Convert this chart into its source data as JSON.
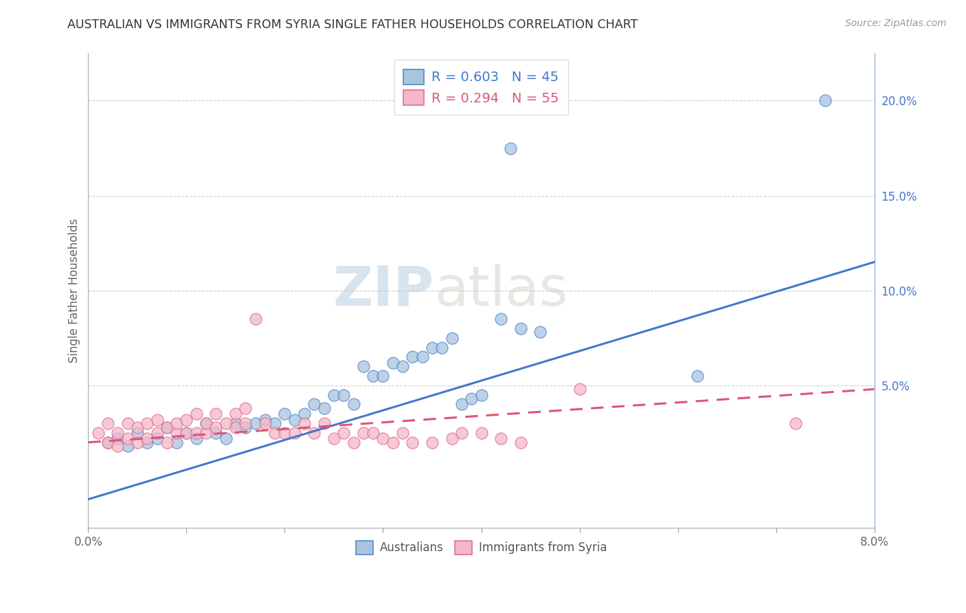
{
  "title": "AUSTRALIAN VS IMMIGRANTS FROM SYRIA SINGLE FATHER HOUSEHOLDS CORRELATION CHART",
  "source": "Source: ZipAtlas.com",
  "ylabel": "Single Father Households",
  "right_yticks": [
    0.0,
    0.05,
    0.1,
    0.15,
    0.2
  ],
  "right_yticklabels": [
    "",
    "5.0%",
    "10.0%",
    "15.0%",
    "20.0%"
  ],
  "blue_R": "0.603",
  "blue_N": "45",
  "pink_R": "0.294",
  "pink_N": "55",
  "blue_color": "#a8c4e0",
  "pink_color": "#f4b8c8",
  "blue_edge_color": "#5588cc",
  "pink_edge_color": "#e07090",
  "blue_line_color": "#4477cc",
  "pink_line_color": "#dd5577",
  "legend_label1": "Australians",
  "legend_label2": "Immigrants from Syria",
  "blue_x": [
    0.002,
    0.003,
    0.004,
    0.005,
    0.006,
    0.007,
    0.008,
    0.009,
    0.01,
    0.011,
    0.012,
    0.013,
    0.014,
    0.015,
    0.016,
    0.017,
    0.018,
    0.019,
    0.02,
    0.021,
    0.022,
    0.023,
    0.024,
    0.025,
    0.026,
    0.027,
    0.028,
    0.029,
    0.03,
    0.031,
    0.032,
    0.033,
    0.034,
    0.035,
    0.036,
    0.037,
    0.038,
    0.039,
    0.04,
    0.042,
    0.043,
    0.044,
    0.046,
    0.075,
    0.062
  ],
  "blue_y": [
    0.02,
    0.022,
    0.018,
    0.025,
    0.02,
    0.022,
    0.028,
    0.02,
    0.025,
    0.022,
    0.03,
    0.025,
    0.022,
    0.03,
    0.028,
    0.03,
    0.032,
    0.03,
    0.035,
    0.032,
    0.035,
    0.04,
    0.038,
    0.045,
    0.045,
    0.04,
    0.06,
    0.055,
    0.055,
    0.062,
    0.06,
    0.065,
    0.065,
    0.07,
    0.07,
    0.075,
    0.04,
    0.043,
    0.045,
    0.085,
    0.175,
    0.08,
    0.078,
    0.2,
    0.055
  ],
  "pink_x": [
    0.001,
    0.002,
    0.002,
    0.003,
    0.003,
    0.004,
    0.004,
    0.005,
    0.005,
    0.006,
    0.006,
    0.007,
    0.007,
    0.008,
    0.008,
    0.009,
    0.009,
    0.01,
    0.01,
    0.011,
    0.011,
    0.012,
    0.012,
    0.013,
    0.013,
    0.014,
    0.015,
    0.015,
    0.016,
    0.016,
    0.017,
    0.018,
    0.019,
    0.02,
    0.021,
    0.022,
    0.023,
    0.024,
    0.025,
    0.026,
    0.027,
    0.028,
    0.029,
    0.03,
    0.031,
    0.032,
    0.033,
    0.035,
    0.037,
    0.038,
    0.04,
    0.042,
    0.044,
    0.05,
    0.072
  ],
  "pink_y": [
    0.025,
    0.02,
    0.03,
    0.018,
    0.025,
    0.022,
    0.03,
    0.02,
    0.028,
    0.022,
    0.03,
    0.025,
    0.032,
    0.02,
    0.028,
    0.025,
    0.03,
    0.025,
    0.032,
    0.025,
    0.035,
    0.025,
    0.03,
    0.028,
    0.035,
    0.03,
    0.028,
    0.035,
    0.03,
    0.038,
    0.085,
    0.03,
    0.025,
    0.025,
    0.025,
    0.03,
    0.025,
    0.03,
    0.022,
    0.025,
    0.02,
    0.025,
    0.025,
    0.022,
    0.02,
    0.025,
    0.02,
    0.02,
    0.022,
    0.025,
    0.025,
    0.022,
    0.02,
    0.048,
    0.03
  ],
  "blue_trend": [
    -0.01,
    0.115
  ],
  "pink_trend": [
    0.02,
    0.048
  ],
  "xlim": [
    0.0,
    0.08
  ],
  "ylim": [
    -0.025,
    0.225
  ],
  "figsize": [
    14.06,
    8.92
  ],
  "dpi": 100
}
